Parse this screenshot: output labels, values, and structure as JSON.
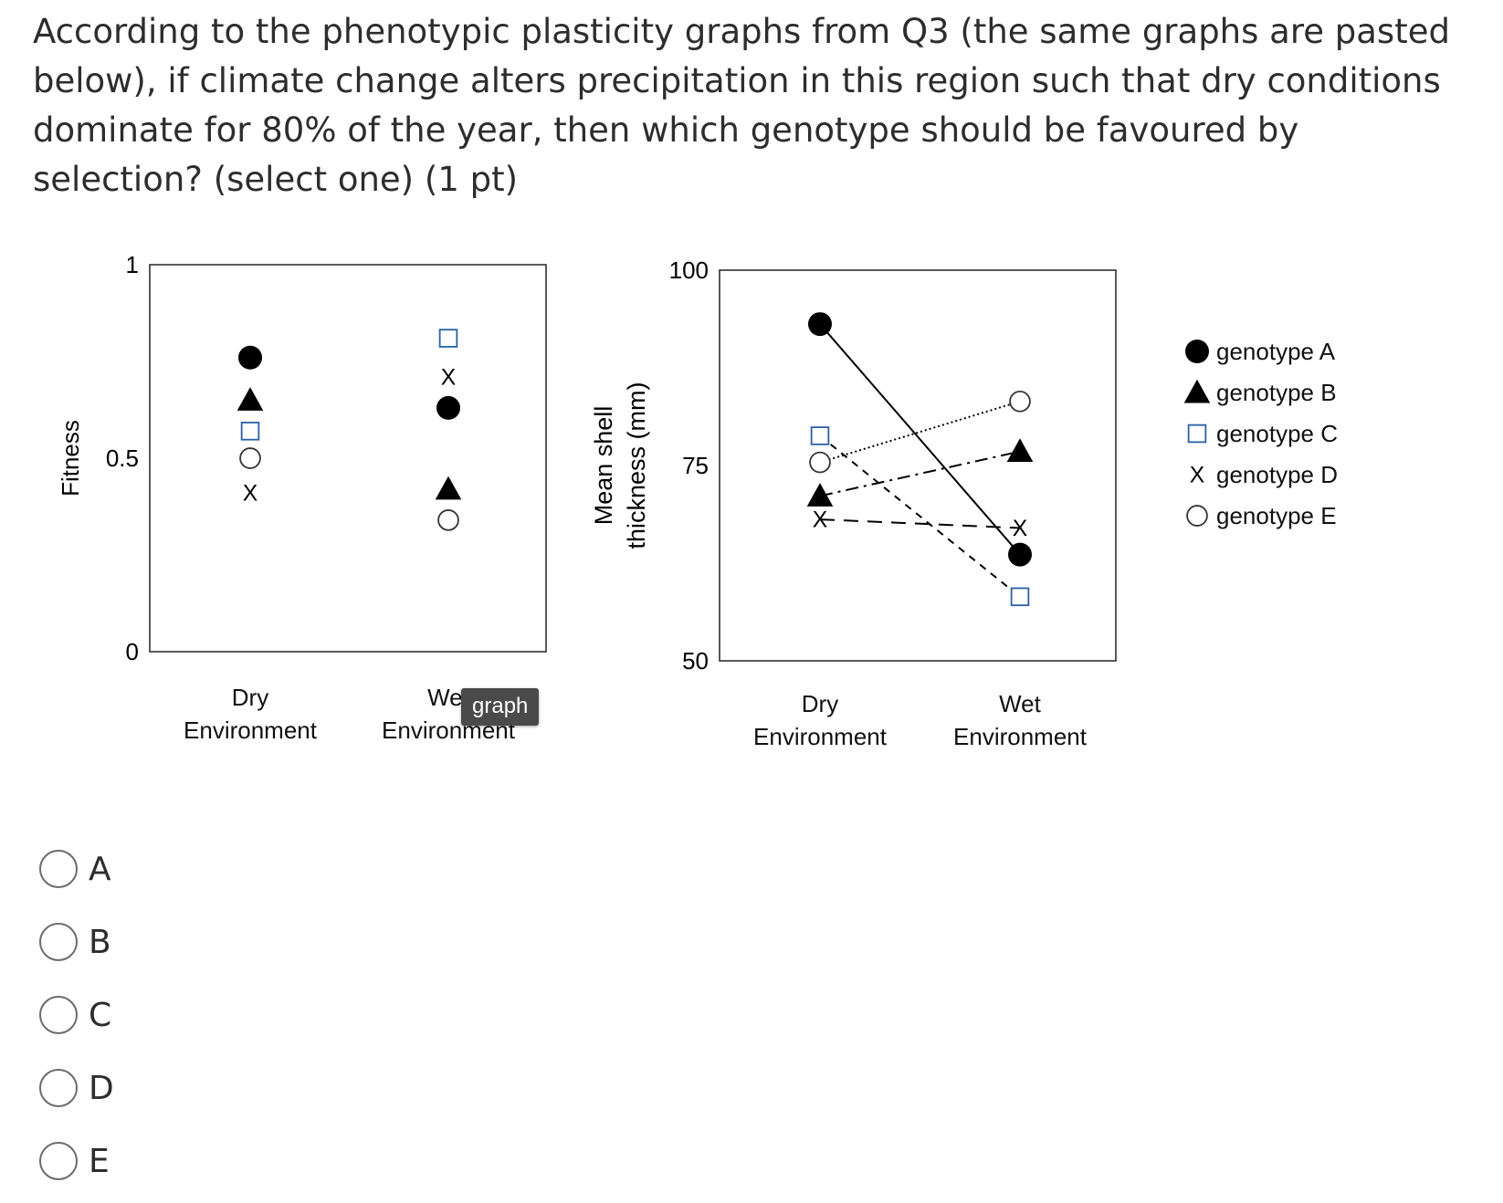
{
  "question": {
    "text": "According to the phenotypic plasticity graphs from Q3 (the same graphs are pasted below), if climate change alters precipitation in this region such that dry conditions dominate for 80% of the year, then which genotype should be favoured by selection? (select one) (1 pt)"
  },
  "tooltip": {
    "text": "graph"
  },
  "options": [
    {
      "label": "A"
    },
    {
      "label": "B"
    },
    {
      "label": "C"
    },
    {
      "label": "D"
    },
    {
      "label": "E"
    }
  ],
  "chart_data": [
    {
      "type": "scatter",
      "title": "",
      "ylabel": "Fitness",
      "xlabel": "",
      "categories": [
        "Dry\nEnvironment",
        "Wet\nEnvironment"
      ],
      "yticks": [
        "1",
        "0.5",
        "0"
      ],
      "ylim": [
        0,
        1
      ],
      "series": [
        {
          "name": "genotype A",
          "marker": "filled-circle",
          "values": [
            0.76,
            0.63
          ]
        },
        {
          "name": "genotype B",
          "marker": "filled-triangle",
          "values": [
            0.65,
            0.42
          ]
        },
        {
          "name": "genotype C",
          "marker": "open-square",
          "values": [
            0.57,
            0.81
          ]
        },
        {
          "name": "genotype D",
          "marker": "x",
          "values": [
            0.41,
            0.71
          ]
        },
        {
          "name": "genotype E",
          "marker": "open-circle",
          "values": [
            0.5,
            0.34
          ]
        }
      ],
      "grid": false
    },
    {
      "type": "line",
      "title": "",
      "ylabel": "Mean shell\nthickness (mm)",
      "xlabel": "",
      "categories": [
        "Dry\nEnvironment",
        "Wet\nEnvironment"
      ],
      "yticks": [
        "100",
        "75",
        "50"
      ],
      "ylim": [
        50,
        100
      ],
      "series": [
        {
          "name": "genotype A",
          "marker": "filled-circle",
          "line": "solid",
          "values": [
            93.1,
            63.6
          ]
        },
        {
          "name": "genotype B",
          "marker": "filled-triangle",
          "line": "dash-dot",
          "values": [
            71.1,
            76.8
          ]
        },
        {
          "name": "genotype C",
          "marker": "open-square",
          "line": "dashed",
          "values": [
            78.8,
            58.2
          ]
        },
        {
          "name": "genotype D",
          "marker": "x",
          "line": "long-dash",
          "values": [
            68.1,
            67.0
          ]
        },
        {
          "name": "genotype E",
          "marker": "open-circle",
          "line": "dotted",
          "values": [
            75.4,
            83.2
          ]
        }
      ],
      "legend": "right",
      "grid": false
    }
  ]
}
